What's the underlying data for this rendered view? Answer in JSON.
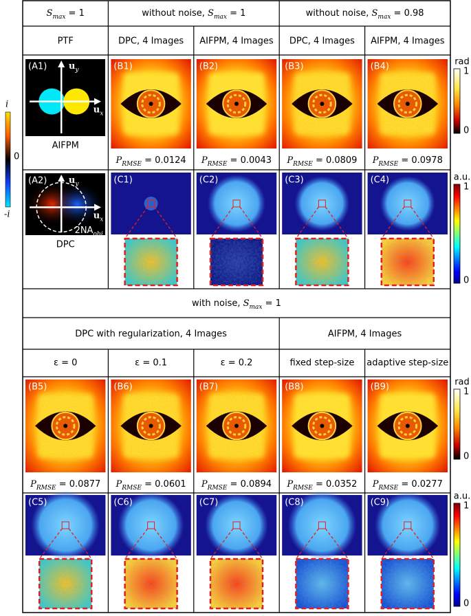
{
  "top": {
    "group_headers": [
      {
        "var": "S",
        "sub": "max",
        "tail": " = 1"
      },
      {
        "lead": "without noise, ",
        "var": "S",
        "sub": "max",
        "tail": " = 1"
      },
      {
        "lead": "without noise, ",
        "var": "S",
        "sub": "max",
        "tail": " = 0.98"
      }
    ],
    "column_headers": [
      "PTF",
      "DPC, 4 Images",
      "AIFPM, 4 Images",
      "DPC, 4 Images",
      "AIFPM, 4 Images"
    ],
    "ptf_panels": [
      {
        "label": "(A1)",
        "caption": "AIFPM"
      },
      {
        "label": "(A2)",
        "caption": "DPC",
        "circle_label": "2NA",
        "circle_label_sub": "obj"
      }
    ],
    "axis": {
      "symbol": "u",
      "x_sub": "x",
      "y_sub": "y"
    },
    "phase_panels": [
      {
        "label": "(B1)",
        "prmse": " = 0.0124"
      },
      {
        "label": "(B2)",
        "prmse": " = 0.0043"
      },
      {
        "label": "(B3)",
        "prmse": " = 0.0809"
      },
      {
        "label": "(B4)",
        "prmse": " = 0.0978"
      }
    ],
    "amplitude_panels": [
      "(C1)",
      "(C2)",
      "(C3)",
      "(C4)"
    ],
    "phase_colorbar": {
      "unit": "rad",
      "max": "1",
      "min": "0"
    },
    "amplitude_colorbar": {
      "unit": "a.u.",
      "max": "1",
      "min": "0"
    }
  },
  "metric": {
    "var": "P",
    "sub": "RMSE"
  },
  "ptf_colorbar": {
    "max": "i",
    "mid": "0",
    "min": "-i"
  },
  "bottom": {
    "group_header": {
      "lead": "with noise, ",
      "var": "S",
      "sub": "max",
      "tail": " = 1"
    },
    "method_headers": [
      "DPC with regularization, 4 Images",
      "AIFPM, 4 Images"
    ],
    "column_headers": [
      "ε = 0",
      "ε = 0.1",
      "ε = 0.2",
      "fixed step-size",
      "adaptive step-size"
    ],
    "phase_panels": [
      {
        "label": "(B5)",
        "prmse": " = 0.0877"
      },
      {
        "label": "(B6)",
        "prmse": " = 0.0601"
      },
      {
        "label": "(B7)",
        "prmse": " = 0.0894"
      },
      {
        "label": "(B8)",
        "prmse": " = 0.0352"
      },
      {
        "label": "(B9)",
        "prmse": " = 0.0277"
      }
    ],
    "amplitude_panels": [
      "(C5)",
      "(C6)",
      "(C7)",
      "(C8)",
      "(C9)"
    ],
    "phase_colorbar": {
      "unit": "rad",
      "max": "1",
      "min": "0"
    },
    "amplitude_colorbar": {
      "unit": "a.u.",
      "max": "1",
      "min": "0"
    }
  }
}
